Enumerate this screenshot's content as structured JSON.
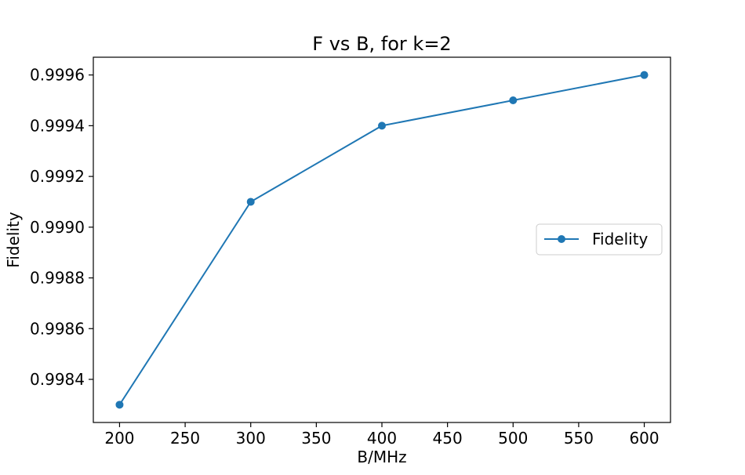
{
  "chart_data": {
    "type": "line",
    "title": "F vs B, for k=2",
    "xlabel": "B/MHz",
    "ylabel": "Fidelity",
    "x": [
      200,
      300,
      400,
      500,
      600
    ],
    "series": [
      {
        "name": "Fidelity",
        "values": [
          0.9983,
          0.9991,
          0.9994,
          0.9995,
          0.9996
        ],
        "color": "#1f77b4",
        "marker": "circle"
      }
    ],
    "xlim": [
      180,
      620
    ],
    "ylim": [
      0.99823,
      0.99967
    ],
    "xticks": [
      200,
      250,
      300,
      350,
      400,
      450,
      500,
      550,
      600
    ],
    "yticks": [
      0.9984,
      0.9986,
      0.9988,
      0.999,
      0.9992,
      0.9994,
      0.9996
    ],
    "ytick_labels": [
      "0.9984",
      "0.9986",
      "0.9988",
      "0.9990",
      "0.9992",
      "0.9994",
      "0.9996"
    ],
    "grid": false,
    "legend": {
      "placement": "center-right",
      "entries": [
        "Fidelity"
      ]
    }
  }
}
